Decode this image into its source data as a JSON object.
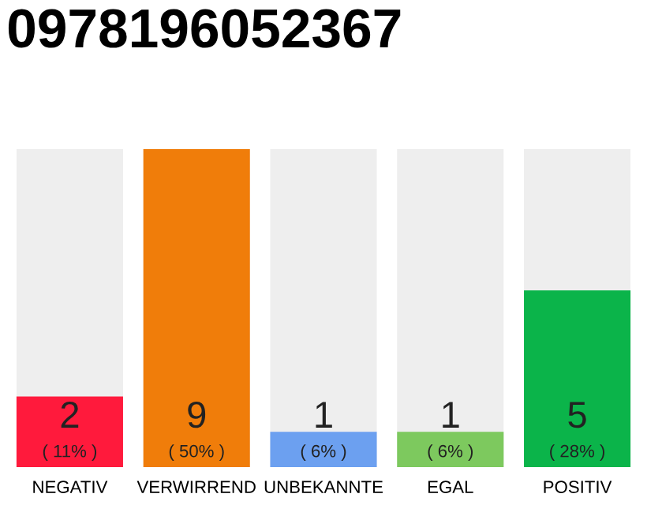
{
  "chart_data": {
    "type": "bar",
    "title": "0978196052367",
    "categories": [
      "NEGATIV",
      "VERWIRREND",
      "UNBEKANNTE",
      "EGAL",
      "POSITIV"
    ],
    "values": [
      2,
      9,
      1,
      1,
      5
    ],
    "colors": [
      "#ff1a3c",
      "#f07d0a",
      "#6ca0f0",
      "#7dc95e",
      "#0bb44a"
    ],
    "value_labels": [
      "2\n( 11% )",
      "9\n( 50% )",
      "1\n( 6% )",
      "1\n( 6% )",
      "5\n( 28% )"
    ],
    "ylim": [
      0,
      9
    ],
    "tick_labels": "x",
    "grid": false
  }
}
